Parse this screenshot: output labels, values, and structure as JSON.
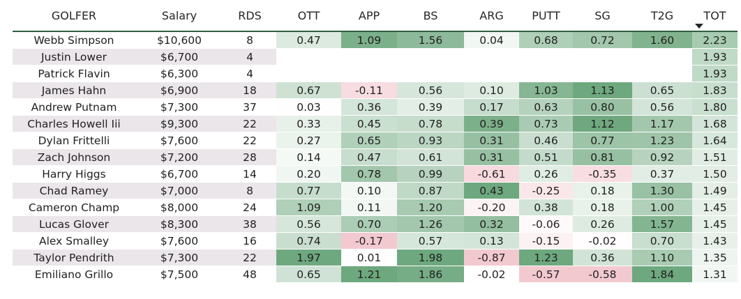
{
  "columns": [
    {
      "key": "golfer",
      "label": "GOLFER"
    },
    {
      "key": "salary",
      "label": "Salary"
    },
    {
      "key": "rds",
      "label": "RDS"
    },
    {
      "key": "ott",
      "label": "OTT"
    },
    {
      "key": "app",
      "label": "APP"
    },
    {
      "key": "bs",
      "label": "BS"
    },
    {
      "key": "arg",
      "label": "ARG"
    },
    {
      "key": "putt",
      "label": "PUTT"
    },
    {
      "key": "sg",
      "label": "SG"
    },
    {
      "key": "t2g",
      "label": "T2G"
    },
    {
      "key": "tot",
      "label": "TOT",
      "sorted": "descending"
    }
  ],
  "heat_colors": {
    "positive": "#5e9e70",
    "negative": "#f3c9d0",
    "neutral": "#ffffff"
  },
  "rows": [
    {
      "golfer": "Webb Simpson",
      "salary": "$10,600",
      "rds": "8",
      "ott": "0.47",
      "app": "1.09",
      "bs": "1.56",
      "arg": "0.04",
      "putt": "0.68",
      "sg": "0.72",
      "t2g": "1.60",
      "tot": "2.23"
    },
    {
      "golfer": "Justin Lower",
      "salary": "$6,700",
      "rds": "4",
      "ott": "",
      "app": "",
      "bs": "",
      "arg": "",
      "putt": "",
      "sg": "",
      "t2g": "",
      "tot": "1.93"
    },
    {
      "golfer": "Patrick Flavin",
      "salary": "$6,300",
      "rds": "4",
      "ott": "",
      "app": "",
      "bs": "",
      "arg": "",
      "putt": "",
      "sg": "",
      "t2g": "",
      "tot": "1.93"
    },
    {
      "golfer": "James Hahn",
      "salary": "$6,900",
      "rds": "18",
      "ott": "0.67",
      "app": "-0.11",
      "bs": "0.56",
      "arg": "0.10",
      "putt": "1.03",
      "sg": "1.13",
      "t2g": "0.65",
      "tot": "1.83"
    },
    {
      "golfer": "Andrew Putnam",
      "salary": "$7,300",
      "rds": "37",
      "ott": "0.03",
      "app": "0.36",
      "bs": "0.39",
      "arg": "0.17",
      "putt": "0.63",
      "sg": "0.80",
      "t2g": "0.56",
      "tot": "1.80"
    },
    {
      "golfer": "Charles Howell Iii",
      "salary": "$9,300",
      "rds": "22",
      "ott": "0.33",
      "app": "0.45",
      "bs": "0.78",
      "arg": "0.39",
      "putt": "0.73",
      "sg": "1.12",
      "t2g": "1.17",
      "tot": "1.68"
    },
    {
      "golfer": "Dylan Frittelli",
      "salary": "$7,600",
      "rds": "22",
      "ott": "0.27",
      "app": "0.65",
      "bs": "0.93",
      "arg": "0.31",
      "putt": "0.46",
      "sg": "0.77",
      "t2g": "1.23",
      "tot": "1.64"
    },
    {
      "golfer": "Zach Johnson",
      "salary": "$7,200",
      "rds": "28",
      "ott": "0.14",
      "app": "0.47",
      "bs": "0.61",
      "arg": "0.31",
      "putt": "0.51",
      "sg": "0.81",
      "t2g": "0.92",
      "tot": "1.51"
    },
    {
      "golfer": "Harry Higgs",
      "salary": "$6,700",
      "rds": "14",
      "ott": "0.20",
      "app": "0.78",
      "bs": "0.99",
      "arg": "-0.61",
      "putt": "0.26",
      "sg": "-0.35",
      "t2g": "0.37",
      "tot": "1.50"
    },
    {
      "golfer": "Chad Ramey",
      "salary": "$7,000",
      "rds": "8",
      "ott": "0.77",
      "app": "0.10",
      "bs": "0.87",
      "arg": "0.43",
      "putt": "-0.25",
      "sg": "0.18",
      "t2g": "1.30",
      "tot": "1.49"
    },
    {
      "golfer": "Cameron Champ",
      "salary": "$8,000",
      "rds": "24",
      "ott": "1.09",
      "app": "0.11",
      "bs": "1.20",
      "arg": "-0.20",
      "putt": "0.38",
      "sg": "0.18",
      "t2g": "1.00",
      "tot": "1.45"
    },
    {
      "golfer": "Lucas Glover",
      "salary": "$8,300",
      "rds": "38",
      "ott": "0.56",
      "app": "0.70",
      "bs": "1.26",
      "arg": "0.32",
      "putt": "-0.06",
      "sg": "0.26",
      "t2g": "1.57",
      "tot": "1.45"
    },
    {
      "golfer": "Alex Smalley",
      "salary": "$7,600",
      "rds": "16",
      "ott": "0.74",
      "app": "-0.17",
      "bs": "0.57",
      "arg": "0.13",
      "putt": "-0.15",
      "sg": "-0.02",
      "t2g": "0.70",
      "tot": "1.43"
    },
    {
      "golfer": "Taylor Pendrith",
      "salary": "$7,300",
      "rds": "22",
      "ott": "1.97",
      "app": "0.01",
      "bs": "1.98",
      "arg": "-0.87",
      "putt": "1.23",
      "sg": "0.36",
      "t2g": "1.10",
      "tot": "1.35"
    },
    {
      "golfer": "Emiliano Grillo",
      "salary": "$7,500",
      "rds": "48",
      "ott": "0.65",
      "app": "1.21",
      "bs": "1.86",
      "arg": "-0.02",
      "putt": "-0.57",
      "sg": "-0.58",
      "t2g": "1.84",
      "tot": "1.31"
    }
  ]
}
